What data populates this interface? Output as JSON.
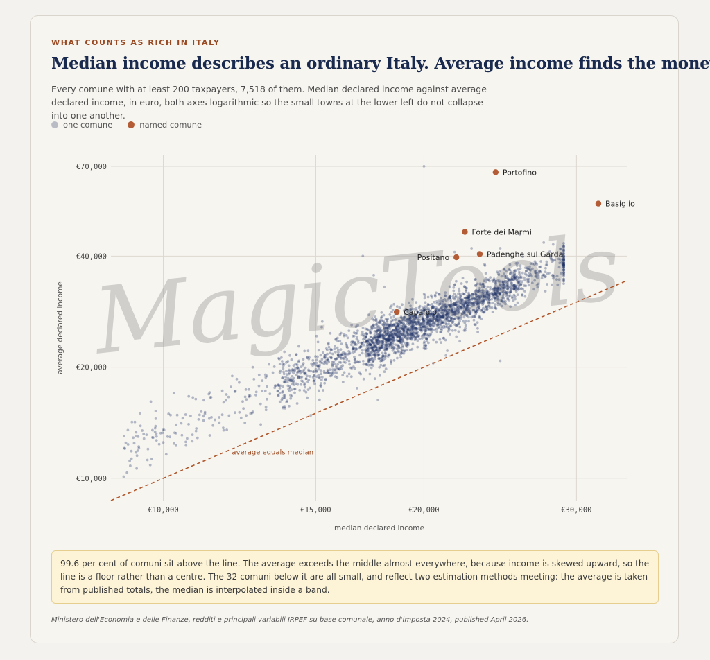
{
  "kicker": "WHAT COUNTS AS RICH IN ITALY",
  "title": "Median income describes an ordinary Italy. Average income finds the money.",
  "subtitle": "Every comune with at least 200 taxpayers, 7,518 of them. Median declared income against average declared income, in euro, both axes logarithmic so the small towns at the lower left do not collapse into one another.",
  "legend": {
    "one_comune": "one comune",
    "named_comune": "named comune"
  },
  "colors": {
    "point": "#1f3366",
    "named": "#b35c35",
    "reference_line": "#b0562a",
    "legend_grey": "#b9bcc4"
  },
  "note": "99.6 per cent of comuni sit above the line. The average exceeds the middle almost everywhere, because income is skewed upward, so the line is a floor rather than a centre. The 32 comuni below it are all small, and reflect two estimation methods meeting: the average is taken from published totals, the median is interpolated inside a band.",
  "source": "Ministero dell'Economia e delle Finanze, redditi e principali variabili IRPEF su base comunale, anno d'imposta 2024, published April 2026.",
  "watermark": "MagicTools",
  "chart_data": {
    "type": "scatter",
    "x_scale": "log",
    "y_scale": "log",
    "xlabel": "median declared income",
    "ylabel": "average declared income",
    "xlim": [
      8700,
      34300
    ],
    "ylim": [
      8700,
      75000
    ],
    "x_ticks": [
      {
        "value": 10000,
        "label": "€10,000"
      },
      {
        "value": 15000,
        "label": "€15,000"
      },
      {
        "value": 20000,
        "label": "€20,000"
      },
      {
        "value": 30000,
        "label": "€30,000"
      }
    ],
    "y_ticks": [
      {
        "value": 10000,
        "label": "€10,000"
      },
      {
        "value": 20000,
        "label": "€20,000"
      },
      {
        "value": 40000,
        "label": "€40,000"
      },
      {
        "value": 70000,
        "label": "€70,000"
      }
    ],
    "grid": true,
    "reference_line": {
      "label": "average equals median",
      "label_at": {
        "x": 12000,
        "y": 11600
      }
    },
    "named": [
      {
        "name": "Portofino",
        "x": 24200,
        "y": 67500,
        "label_side": "right"
      },
      {
        "name": "Basiglio",
        "x": 31800,
        "y": 55500,
        "label_side": "right"
      },
      {
        "name": "Forte dei Marmi",
        "x": 22300,
        "y": 46500,
        "label_side": "right"
      },
      {
        "name": "Padenghe sul Garda",
        "x": 23200,
        "y": 40500,
        "label_side": "right"
      },
      {
        "name": "Positano",
        "x": 21800,
        "y": 39700,
        "label_side": "left"
      },
      {
        "name": "Capalbio",
        "x": 18600,
        "y": 28200,
        "label_side": "right"
      }
    ],
    "bulk": {
      "count": 7518,
      "relation": "average ≈ 1.32 × median, tighter spread at higher incomes",
      "median_range": [
        9000,
        29000
      ]
    },
    "extra_points": [
      [
        20000,
        70000
      ],
      [
        9000,
        10100
      ],
      [
        9100,
        13500
      ],
      [
        9300,
        13000
      ],
      [
        9500,
        12800
      ],
      [
        9800,
        14500
      ],
      [
        10000,
        12500
      ],
      [
        9200,
        14200
      ],
      [
        9400,
        15000
      ],
      [
        9800,
        15200
      ],
      [
        9600,
        12000
      ],
      [
        27500,
        43500
      ],
      [
        28200,
        43000
      ],
      [
        25800,
        45800
      ],
      [
        24500,
        42000
      ],
      [
        17000,
        40000
      ],
      [
        17500,
        35500
      ],
      [
        18000,
        33000
      ],
      [
        16500,
        26000
      ],
      [
        16000,
        24500
      ],
      [
        14000,
        21500
      ],
      [
        13800,
        22000
      ],
      [
        24500,
        20800
      ],
      [
        22000,
        23500
      ],
      [
        21200,
        21500
      ],
      [
        20500,
        20500
      ],
      [
        21800,
        24200
      ],
      [
        14800,
        14800
      ],
      [
        17700,
        16300
      ],
      [
        10800,
        12600
      ],
      [
        23500,
        38000
      ],
      [
        22700,
        42000
      ],
      [
        21700,
        41000
      ],
      [
        26000,
        36000
      ],
      [
        27000,
        38000
      ]
    ]
  }
}
